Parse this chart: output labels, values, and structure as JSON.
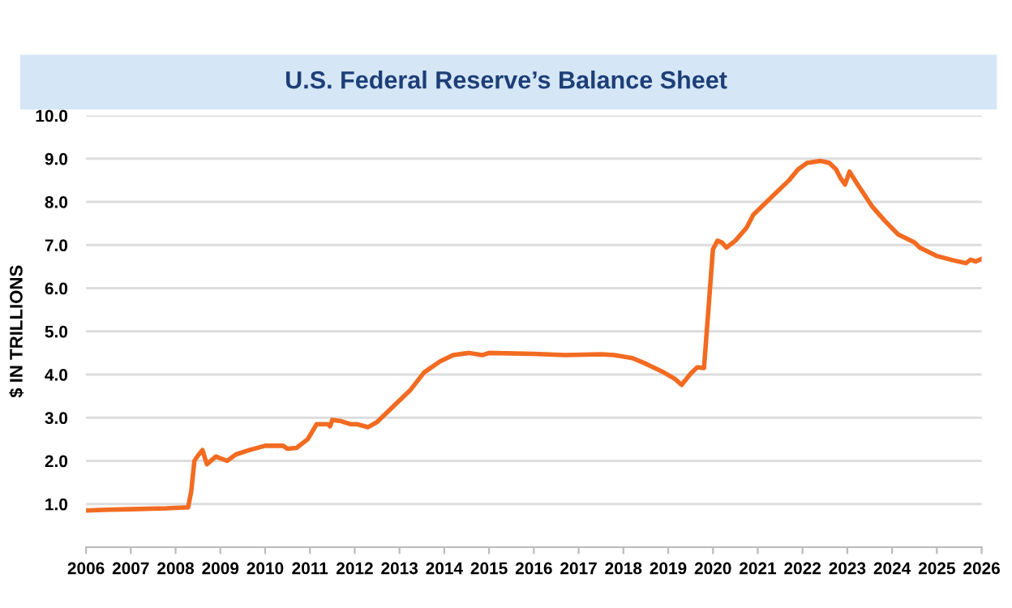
{
  "chart_data": {
    "type": "line",
    "title": "U.S. Federal Reserve’s Balance Sheet",
    "ylabel": "$ IN TRILLIONS",
    "x": [
      2006.0,
      2006.5,
      2007.0,
      2007.8,
      2008.2,
      2008.28,
      2008.35,
      2008.42,
      2008.52,
      2008.6,
      2008.7,
      2008.9,
      2009.15,
      2009.35,
      2009.65,
      2010.0,
      2010.4,
      2010.5,
      2010.7,
      2010.95,
      2011.15,
      2011.4,
      2011.45,
      2011.5,
      2011.7,
      2011.9,
      2012.05,
      2012.3,
      2012.5,
      2012.9,
      2013.25,
      2013.55,
      2013.9,
      2014.2,
      2014.55,
      2014.85,
      2015.0,
      2016.0,
      2016.7,
      2017.5,
      2017.8,
      2018.2,
      2018.5,
      2018.9,
      2019.15,
      2019.3,
      2019.5,
      2019.65,
      2019.8,
      2020.0,
      2020.1,
      2020.2,
      2020.3,
      2020.5,
      2020.75,
      2020.9,
      2021.1,
      2021.4,
      2021.7,
      2021.9,
      2022.1,
      2022.4,
      2022.6,
      2022.75,
      2022.85,
      2022.95,
      2023.05,
      2023.2,
      2023.55,
      2023.83,
      2024.13,
      2024.5,
      2024.62,
      2024.99,
      2025.35,
      2025.65,
      2025.75,
      2025.87,
      2026.0
    ],
    "series": [
      {
        "color": "#f26b21",
        "values": [
          0.85,
          0.87,
          0.88,
          0.9,
          0.92,
          0.92,
          1.3,
          2.0,
          2.15,
          2.25,
          1.92,
          2.1,
          2.0,
          2.15,
          2.25,
          2.35,
          2.35,
          2.28,
          2.3,
          2.5,
          2.85,
          2.85,
          2.8,
          2.95,
          2.92,
          2.85,
          2.85,
          2.78,
          2.9,
          3.3,
          3.65,
          4.05,
          4.3,
          4.45,
          4.5,
          4.45,
          4.5,
          4.48,
          4.45,
          4.47,
          4.45,
          4.38,
          4.25,
          4.05,
          3.9,
          3.76,
          4.02,
          4.17,
          4.15,
          6.9,
          7.1,
          7.06,
          6.94,
          7.1,
          7.4,
          7.7,
          7.9,
          8.2,
          8.5,
          8.75,
          8.9,
          8.95,
          8.9,
          8.75,
          8.55,
          8.4,
          8.7,
          8.45,
          7.9,
          7.57,
          7.25,
          7.06,
          6.94,
          6.75,
          6.65,
          6.58,
          6.66,
          6.62,
          6.68
        ]
      }
    ],
    "xlim": [
      2006,
      2026
    ],
    "xticks": [
      2006,
      2007,
      2008,
      2009,
      2010,
      2011,
      2012,
      2013,
      2014,
      2015,
      2016,
      2017,
      2018,
      2019,
      2020,
      2021,
      2022,
      2023,
      2024,
      2025,
      2026
    ],
    "ylim": [
      0,
      10
    ],
    "yticks": [
      {
        "value": 1,
        "label": "1.0"
      },
      {
        "value": 2,
        "label": "2.0"
      },
      {
        "value": 3,
        "label": "3.0"
      },
      {
        "value": 4,
        "label": "4.0"
      },
      {
        "value": 5,
        "label": "5.0"
      },
      {
        "value": 6,
        "label": "6.0"
      },
      {
        "value": 7,
        "label": "7.0"
      },
      {
        "value": 8,
        "label": "8.0"
      },
      {
        "value": 9,
        "label": "9.0"
      },
      {
        "value": 10,
        "label": "10.0"
      }
    ],
    "grid": "y",
    "marker": "none",
    "line_style": "solid"
  }
}
